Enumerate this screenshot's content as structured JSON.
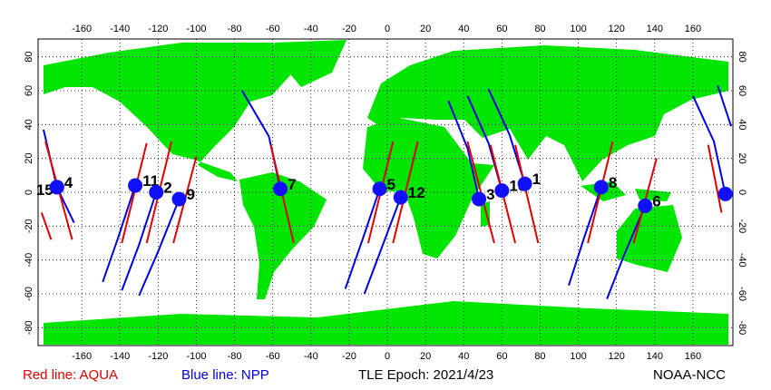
{
  "axes": {
    "xlim": [
      -180,
      180
    ],
    "ylim": [
      -90,
      90
    ],
    "xticks": [
      -160,
      -140,
      -120,
      -100,
      -80,
      -60,
      -40,
      -20,
      0,
      20,
      40,
      60,
      80,
      100,
      120,
      140,
      160
    ],
    "yticks": [
      80,
      60,
      40,
      20,
      0,
      -20,
      -40,
      -60,
      -80
    ]
  },
  "satellites": [
    {
      "label": "15",
      "lon": -173,
      "lat": 3
    },
    {
      "label": "4",
      "lon": -173,
      "lat": 3
    },
    {
      "label": "11",
      "lon": -132,
      "lat": 4
    },
    {
      "label": "2",
      "lon": -121,
      "lat": 0
    },
    {
      "label": "9",
      "lon": -109,
      "lat": -4
    },
    {
      "label": "7",
      "lon": -56,
      "lat": 2
    },
    {
      "label": "5",
      "lon": -4,
      "lat": 2
    },
    {
      "label": "12",
      "lon": 7,
      "lat": -3
    },
    {
      "label": "3",
      "lon": 48,
      "lat": -4
    },
    {
      "label": "10",
      "lon": 60,
      "lat": 1
    },
    {
      "label": "1",
      "lon": 72,
      "lat": 5
    },
    {
      "label": "8",
      "lon": 112,
      "lat": 3
    },
    {
      "label": "6",
      "lon": 135,
      "lat": -8
    },
    {
      "lon": 177,
      "lat": -1
    }
  ],
  "tracks": {
    "aqua": [
      [
        [
          -179,
          30
        ],
        [
          -165,
          -28
        ]
      ],
      [
        [
          -181,
          -12
        ],
        [
          -176,
          -28
        ]
      ],
      [
        [
          -126,
          29
        ],
        [
          -139,
          -30
        ]
      ],
      [
        [
          -113,
          30
        ],
        [
          -126,
          -30
        ]
      ],
      [
        [
          -100,
          21
        ],
        [
          -112,
          -30
        ]
      ],
      [
        [
          -61,
          28
        ],
        [
          -49,
          -30
        ]
      ],
      [
        [
          3,
          30
        ],
        [
          -10,
          -30
        ]
      ],
      [
        [
          16,
          30
        ],
        [
          3,
          -30
        ]
      ],
      [
        [
          42,
          30
        ],
        [
          56,
          -30
        ]
      ],
      [
        [
          54,
          28
        ],
        [
          67,
          -30
        ]
      ],
      [
        [
          67,
          28
        ],
        [
          79,
          -30
        ]
      ],
      [
        [
          118,
          30
        ],
        [
          105,
          -30
        ]
      ],
      [
        [
          141,
          20
        ],
        [
          129,
          -30
        ]
      ],
      [
        [
          168,
          28
        ],
        [
          175,
          -12
        ]
      ]
    ],
    "npp": [
      [
        [
          -180,
          37
        ],
        [
          -173,
          3
        ],
        [
          -164,
          -18
        ]
      ],
      [
        [
          -132,
          4
        ],
        [
          -141,
          -27
        ],
        [
          -149,
          -53
        ]
      ],
      [
        [
          -121,
          0
        ],
        [
          -130,
          -31
        ],
        [
          -139,
          -58
        ]
      ],
      [
        [
          -109,
          -4
        ],
        [
          -120,
          -35
        ],
        [
          -130,
          -61
        ]
      ],
      [
        [
          -76,
          60
        ],
        [
          -62,
          33
        ],
        [
          -56,
          2
        ]
      ],
      [
        [
          -4,
          2
        ],
        [
          -13,
          -28
        ],
        [
          -22,
          -57
        ]
      ],
      [
        [
          7,
          -3
        ],
        [
          -3,
          -33
        ],
        [
          -12,
          -60
        ]
      ],
      [
        [
          32,
          54
        ],
        [
          42,
          26
        ],
        [
          48,
          -4
        ]
      ],
      [
        [
          42,
          57
        ],
        [
          53,
          29
        ],
        [
          60,
          1
        ]
      ],
      [
        [
          53,
          61
        ],
        [
          64,
          34
        ],
        [
          72,
          5
        ]
      ],
      [
        [
          112,
          3
        ],
        [
          103,
          -27
        ],
        [
          95,
          -55
        ]
      ],
      [
        [
          135,
          -8
        ],
        [
          124,
          -37
        ],
        [
          115,
          -63
        ]
      ],
      [
        [
          160,
          57
        ],
        [
          171,
          30
        ],
        [
          177,
          -1
        ]
      ],
      [
        [
          173,
          63
        ],
        [
          180,
          39
        ]
      ]
    ]
  },
  "legend": {
    "aqua": "Red line: AQUA",
    "npp": "Blue line: NPP"
  },
  "epoch": "TLE Epoch: 2021/4/23",
  "credit": "NOAA-NCC"
}
